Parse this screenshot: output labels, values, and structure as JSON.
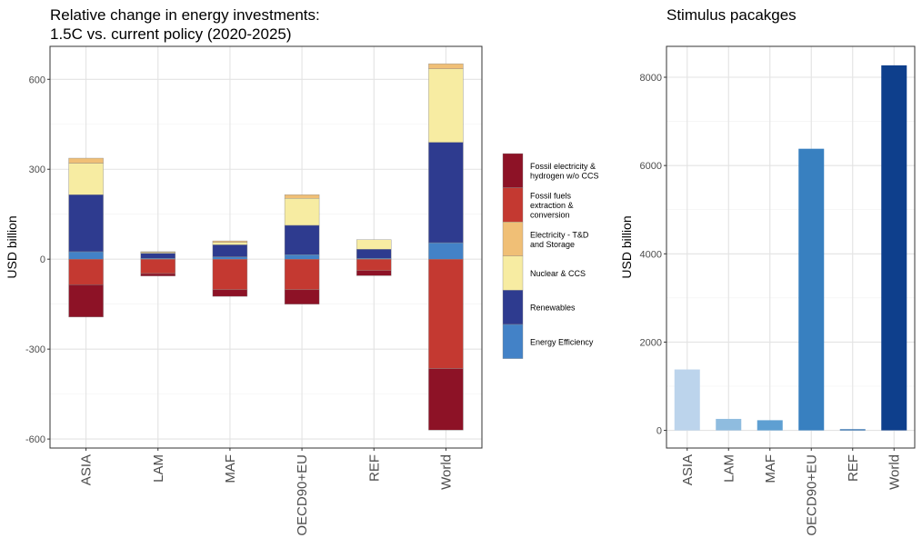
{
  "left_title": "Relative change in energy investments:\n1.5C vs. current policy (2020-2025)",
  "right_title": "Stimulus pacakges",
  "chart_data": [
    {
      "type": "bar",
      "stacked": true,
      "title": "Relative change in energy investments:\n1.5C vs. current policy (2020-2025)",
      "xlabel": "",
      "ylabel": "USD billion",
      "ylim": [
        -630,
        710
      ],
      "yticks": [
        -600,
        -300,
        0,
        300,
        600
      ],
      "grid": true,
      "legend_position": "right",
      "categories": [
        "ASIA",
        "LAM",
        "MAF",
        "OECD90+EU",
        "REF",
        "World"
      ],
      "series": [
        {
          "name": "Energy Efficiency",
          "color": "#4382c7",
          "values": [
            25,
            3,
            8,
            15,
            3,
            55
          ]
        },
        {
          "name": "Renewables",
          "color": "#2e3b8f",
          "values": [
            190,
            17,
            40,
            98,
            30,
            335
          ]
        },
        {
          "name": "Nuclear & CCS",
          "color": "#f7eca2",
          "values": [
            105,
            3,
            8,
            90,
            32,
            245
          ]
        },
        {
          "name": "Electricity - T&D and Storage",
          "color": "#f0bf76",
          "values": [
            17,
            2,
            5,
            12,
            0,
            17
          ]
        },
        {
          "name": "Fossil fuels extraction & conversion",
          "color": "#c43931",
          "values": [
            -85,
            -48,
            -102,
            -102,
            -38,
            -365
          ]
        },
        {
          "name": "Fossil electricity & hydrogen w/o CCS",
          "color": "#8d1226",
          "values": [
            -108,
            -8,
            -22,
            -48,
            -17,
            -205
          ]
        }
      ]
    },
    {
      "type": "bar",
      "title": "Stimulus pacakges",
      "xlabel": "",
      "ylabel": "USD billion",
      "ylim": [
        -400,
        8700
      ],
      "yticks": [
        0,
        2000,
        4000,
        6000,
        8000
      ],
      "grid": true,
      "categories": [
        "ASIA",
        "LAM",
        "MAF",
        "OECD90+EU",
        "REF",
        "World"
      ],
      "values": [
        1380,
        260,
        230,
        6380,
        25,
        8270
      ],
      "colors": [
        "#bcd4ec",
        "#8fbcdf",
        "#5e9fd2",
        "#3880c0",
        "#1f62a8",
        "#0e3f8c"
      ]
    }
  ],
  "legend": {
    "items": [
      {
        "label": "Fossil electricity &\nhydrogen w/o CCS",
        "color": "#8d1226"
      },
      {
        "label": "Fossil fuels\nextraction &\nconversion",
        "color": "#c43931"
      },
      {
        "label": "Electricity - T&D\nand Storage",
        "color": "#f0bf76"
      },
      {
        "label": "Nuclear & CCS",
        "color": "#f7eca2"
      },
      {
        "label": "Renewables",
        "color": "#2e3b8f"
      },
      {
        "label": "Energy Efficiency",
        "color": "#4382c7"
      }
    ]
  }
}
